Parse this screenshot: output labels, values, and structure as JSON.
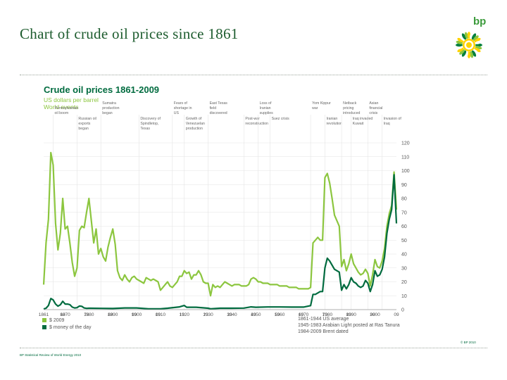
{
  "slide": {
    "title": "Chart of crude oil prices since 1861",
    "logo_text": "bp",
    "footer": "BP Statistical Review of World Energy 2010",
    "copyright": "© BP 2010"
  },
  "chart_data": {
    "type": "line",
    "title": "Crude oil prices 1861-2009",
    "subtitle_lines": [
      "US dollars per barrel",
      "World events"
    ],
    "ylim": [
      0,
      120
    ],
    "xlim": [
      1861,
      2009
    ],
    "y_ticks": [
      "0",
      "10",
      "20",
      "30",
      "40",
      "50",
      "60",
      "70",
      "80",
      "90",
      "100",
      "110",
      "120"
    ],
    "x_ticks": [
      {
        "label": "1861",
        "year": 1861
      },
      {
        "label": "69",
        "year": 1869
      },
      {
        "label": "1870",
        "year": 1870
      },
      {
        "label": "79",
        "year": 1879
      },
      {
        "label": "1880",
        "year": 1880
      },
      {
        "label": "89",
        "year": 1889
      },
      {
        "label": "1890",
        "year": 1890
      },
      {
        "label": "99",
        "year": 1899
      },
      {
        "label": "1900",
        "year": 1900
      },
      {
        "label": "09",
        "year": 1909
      },
      {
        "label": "1910",
        "year": 1910
      },
      {
        "label": "19",
        "year": 1919
      },
      {
        "label": "1920",
        "year": 1920
      },
      {
        "label": "29",
        "year": 1929
      },
      {
        "label": "1930",
        "year": 1930
      },
      {
        "label": "39",
        "year": 1939
      },
      {
        "label": "1940",
        "year": 1940
      },
      {
        "label": "49",
        "year": 1949
      },
      {
        "label": "1950",
        "year": 1950
      },
      {
        "label": "59",
        "year": 1959
      },
      {
        "label": "1960",
        "year": 1960
      },
      {
        "label": "69",
        "year": 1969
      },
      {
        "label": "1970",
        "year": 1970
      },
      {
        "label": "79",
        "year": 1979
      },
      {
        "label": "1980",
        "year": 1980
      },
      {
        "label": "89",
        "year": 1989
      },
      {
        "label": "1990",
        "year": 1990
      },
      {
        "label": "99",
        "year": 1999
      },
      {
        "label": "2000",
        "year": 2000
      },
      {
        "label": "09",
        "year": 2009
      }
    ],
    "series": [
      {
        "name": "$ 2009",
        "color": "#8cc63f",
        "points": [
          [
            1861,
            18
          ],
          [
            1862,
            48
          ],
          [
            1863,
            65
          ],
          [
            1864,
            113
          ],
          [
            1865,
            104
          ],
          [
            1866,
            62
          ],
          [
            1867,
            43
          ],
          [
            1868,
            55
          ],
          [
            1869,
            80
          ],
          [
            1870,
            58
          ],
          [
            1871,
            60
          ],
          [
            1872,
            48
          ],
          [
            1873,
            34
          ],
          [
            1874,
            24
          ],
          [
            1875,
            30
          ],
          [
            1876,
            57
          ],
          [
            1877,
            60
          ],
          [
            1878,
            59
          ],
          [
            1879,
            70
          ],
          [
            1880,
            80
          ],
          [
            1881,
            64
          ],
          [
            1882,
            48
          ],
          [
            1883,
            58
          ],
          [
            1884,
            40
          ],
          [
            1885,
            44
          ],
          [
            1886,
            38
          ],
          [
            1887,
            35
          ],
          [
            1888,
            45
          ],
          [
            1889,
            52
          ],
          [
            1890,
            58
          ],
          [
            1891,
            47
          ],
          [
            1892,
            28
          ],
          [
            1893,
            23
          ],
          [
            1894,
            21
          ],
          [
            1895,
            25
          ],
          [
            1896,
            22
          ],
          [
            1897,
            20
          ],
          [
            1898,
            23
          ],
          [
            1899,
            24
          ],
          [
            1900,
            22
          ],
          [
            1901,
            21
          ],
          [
            1902,
            20
          ],
          [
            1903,
            19
          ],
          [
            1904,
            23
          ],
          [
            1905,
            22
          ],
          [
            1906,
            21
          ],
          [
            1907,
            22
          ],
          [
            1908,
            21
          ],
          [
            1909,
            20
          ],
          [
            1910,
            14
          ],
          [
            1911,
            16
          ],
          [
            1912,
            18
          ],
          [
            1913,
            20
          ],
          [
            1914,
            17
          ],
          [
            1915,
            16
          ],
          [
            1916,
            18
          ],
          [
            1917,
            20
          ],
          [
            1918,
            24
          ],
          [
            1919,
            24
          ],
          [
            1920,
            28
          ],
          [
            1921,
            26
          ],
          [
            1922,
            27
          ],
          [
            1923,
            22
          ],
          [
            1924,
            25
          ],
          [
            1925,
            25
          ],
          [
            1926,
            28
          ],
          [
            1927,
            25
          ],
          [
            1928,
            20
          ],
          [
            1929,
            19
          ],
          [
            1930,
            19
          ],
          [
            1931,
            10
          ],
          [
            1932,
            18
          ],
          [
            1933,
            16
          ],
          [
            1934,
            17
          ],
          [
            1935,
            16
          ],
          [
            1936,
            18
          ],
          [
            1937,
            20
          ],
          [
            1938,
            19
          ],
          [
            1939,
            18
          ],
          [
            1940,
            17
          ],
          [
            1941,
            18
          ],
          [
            1942,
            18
          ],
          [
            1943,
            18
          ],
          [
            1944,
            17
          ],
          [
            1945,
            17
          ],
          [
            1946,
            17
          ],
          [
            1947,
            18
          ],
          [
            1948,
            22
          ],
          [
            1949,
            23
          ],
          [
            1950,
            22
          ],
          [
            1951,
            20
          ],
          [
            1952,
            20
          ],
          [
            1953,
            19
          ],
          [
            1954,
            19
          ],
          [
            1955,
            19
          ],
          [
            1956,
            18
          ],
          [
            1957,
            18
          ],
          [
            1958,
            18
          ],
          [
            1959,
            18
          ],
          [
            1960,
            17
          ],
          [
            1961,
            17
          ],
          [
            1962,
            17
          ],
          [
            1963,
            17
          ],
          [
            1964,
            16
          ],
          [
            1965,
            16
          ],
          [
            1966,
            16
          ],
          [
            1967,
            16
          ],
          [
            1968,
            15
          ],
          [
            1969,
            15
          ],
          [
            1970,
            15
          ],
          [
            1971,
            15
          ],
          [
            1972,
            15
          ],
          [
            1973,
            16
          ],
          [
            1974,
            48
          ],
          [
            1975,
            50
          ],
          [
            1976,
            52
          ],
          [
            1977,
            50
          ],
          [
            1978,
            50
          ],
          [
            1979,
            95
          ],
          [
            1980,
            98
          ],
          [
            1981,
            91
          ],
          [
            1982,
            80
          ],
          [
            1983,
            68
          ],
          [
            1984,
            64
          ],
          [
            1985,
            60
          ],
          [
            1986,
            31
          ],
          [
            1987,
            36
          ],
          [
            1988,
            28
          ],
          [
            1989,
            33
          ],
          [
            1990,
            40
          ],
          [
            1991,
            33
          ],
          [
            1992,
            30
          ],
          [
            1993,
            27
          ],
          [
            1994,
            25
          ],
          [
            1995,
            26
          ],
          [
            1996,
            29
          ],
          [
            1997,
            26
          ],
          [
            1998,
            17
          ],
          [
            1999,
            25
          ],
          [
            2000,
            36
          ],
          [
            2001,
            31
          ],
          [
            2002,
            30
          ],
          [
            2003,
            35
          ],
          [
            2004,
            44
          ],
          [
            2005,
            60
          ],
          [
            2006,
            69
          ],
          [
            2007,
            75
          ],
          [
            2008,
            99
          ],
          [
            2009,
            72
          ]
        ]
      },
      {
        "name": "$ money of the day",
        "color": "#006b3f",
        "points": [
          [
            1861,
            0.5
          ],
          [
            1862,
            1
          ],
          [
            1863,
            3
          ],
          [
            1864,
            8
          ],
          [
            1865,
            7
          ],
          [
            1866,
            4
          ],
          [
            1867,
            2.5
          ],
          [
            1868,
            3.5
          ],
          [
            1869,
            6
          ],
          [
            1870,
            4
          ],
          [
            1871,
            4
          ],
          [
            1872,
            3.6
          ],
          [
            1873,
            1.8
          ],
          [
            1874,
            1.2
          ],
          [
            1875,
            1.4
          ],
          [
            1876,
            2.6
          ],
          [
            1877,
            2.4
          ],
          [
            1878,
            1.2
          ],
          [
            1879,
            0.9
          ],
          [
            1880,
            1
          ],
          [
            1885,
            0.9
          ],
          [
            1890,
            0.8
          ],
          [
            1895,
            1.2
          ],
          [
            1900,
            1.2
          ],
          [
            1905,
            0.6
          ],
          [
            1910,
            0.6
          ],
          [
            1913,
            1
          ],
          [
            1918,
            2
          ],
          [
            1920,
            3
          ],
          [
            1921,
            1.7
          ],
          [
            1925,
            1.7
          ],
          [
            1930,
            1
          ],
          [
            1931,
            0.6
          ],
          [
            1935,
            1
          ],
          [
            1940,
            1
          ],
          [
            1945,
            1.1
          ],
          [
            1948,
            2
          ],
          [
            1950,
            1.7
          ],
          [
            1955,
            1.9
          ],
          [
            1960,
            1.9
          ],
          [
            1965,
            1.8
          ],
          [
            1970,
            1.8
          ],
          [
            1973,
            2.9
          ],
          [
            1974,
            11
          ],
          [
            1975,
            11
          ],
          [
            1976,
            12
          ],
          [
            1977,
            13
          ],
          [
            1978,
            13
          ],
          [
            1979,
            30
          ],
          [
            1980,
            37
          ],
          [
            1981,
            35
          ],
          [
            1982,
            32
          ],
          [
            1983,
            29
          ],
          [
            1984,
            28
          ],
          [
            1985,
            27
          ],
          [
            1986,
            14
          ],
          [
            1987,
            18
          ],
          [
            1988,
            15
          ],
          [
            1989,
            18
          ],
          [
            1990,
            23
          ],
          [
            1991,
            20
          ],
          [
            1992,
            19
          ],
          [
            1993,
            17
          ],
          [
            1994,
            16
          ],
          [
            1995,
            17
          ],
          [
            1996,
            21
          ],
          [
            1997,
            19
          ],
          [
            1998,
            13
          ],
          [
            1999,
            18
          ],
          [
            2000,
            28
          ],
          [
            2001,
            24
          ],
          [
            2002,
            25
          ],
          [
            2003,
            29
          ],
          [
            2004,
            38
          ],
          [
            2005,
            55
          ],
          [
            2006,
            65
          ],
          [
            2007,
            72
          ],
          [
            2008,
            97
          ],
          [
            2009,
            62
          ]
        ]
      }
    ],
    "events": [
      {
        "label": "Pennsylvanian oil boom",
        "year": 1865
      },
      {
        "label": "Russian oil exports began",
        "year": 1875
      },
      {
        "label": "Sumatra production began",
        "year": 1885
      },
      {
        "label": "Discovery of Spindletop, Texas",
        "year": 1901
      },
      {
        "label": "Fears of shortage in US",
        "year": 1915
      },
      {
        "label": "Growth of Venezuelan production",
        "year": 1920
      },
      {
        "label": "East Texas field discovered",
        "year": 1930
      },
      {
        "label": "Post-war reconstruction",
        "year": 1945
      },
      {
        "label": "Loss of Iranian supplies",
        "year": 1951
      },
      {
        "label": "Suez crisis",
        "year": 1956
      },
      {
        "label": "Yom Kippur war",
        "year": 1973
      },
      {
        "label": "Iranian revolution",
        "year": 1979
      },
      {
        "label": "Netback pricing introduced",
        "year": 1986
      },
      {
        "label": "Iraq invaded Kuwait",
        "year": 1990
      },
      {
        "label": "Asian financial crisis",
        "year": 1997
      },
      {
        "label": "Invasion of Iraq",
        "year": 2003
      }
    ],
    "legend": [
      {
        "label": "$ 2009",
        "color": "#8cc63f"
      },
      {
        "label": "$ money of the day",
        "color": "#006b3f"
      }
    ],
    "notes": [
      "1861-1944 US average",
      "1945-1983 Arabian Light posted at Ras Tanura",
      "1984-2009 Brent dated"
    ]
  }
}
